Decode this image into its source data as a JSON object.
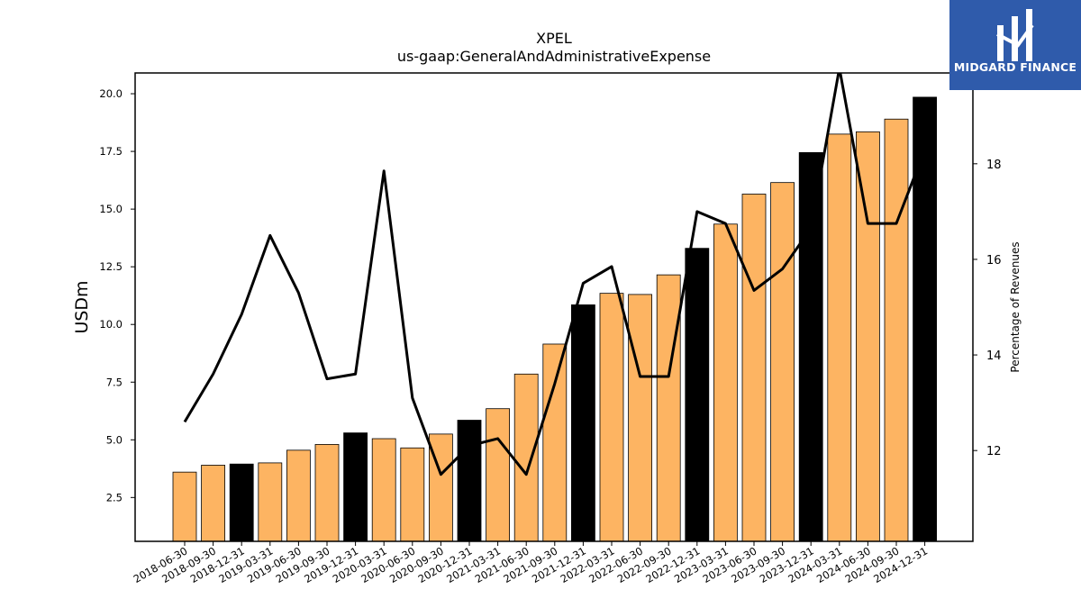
{
  "chart_data": {
    "type": "bar",
    "title": "XPEL",
    "subtitle": "us-gaap:GeneralAndAdministrativeExpense",
    "ylabel": "USDm",
    "y2label": "Percentage of Revenues",
    "ylim": [
      0.6,
      20.9
    ],
    "y2lim": [
      10.1,
      19.9
    ],
    "yticks": [
      "2.5",
      "5.0",
      "7.5",
      "10.0",
      "12.5",
      "15.0",
      "17.5",
      "20.0"
    ],
    "y2ticks": [
      "12",
      "14",
      "16",
      "18"
    ],
    "categories": [
      "2018-06-30",
      "2018-09-30",
      "2018-12-31",
      "2019-03-31",
      "2019-06-30",
      "2019-09-30",
      "2019-12-31",
      "2020-03-31",
      "2020-06-30",
      "2020-09-30",
      "2020-12-31",
      "2021-03-31",
      "2021-06-30",
      "2021-09-30",
      "2021-12-31",
      "2022-03-31",
      "2022-06-30",
      "2022-09-30",
      "2022-12-31",
      "2023-03-31",
      "2023-06-30",
      "2023-09-30",
      "2023-12-31",
      "2024-03-31",
      "2024-06-30",
      "2024-09-30",
      "2024-12-31"
    ],
    "series": [
      {
        "kind": "bar",
        "values": [
          3.6,
          3.9,
          3.95,
          4.0,
          4.55,
          4.8,
          5.3,
          5.05,
          4.65,
          5.25,
          5.85,
          6.35,
          7.85,
          9.15,
          10.85,
          11.35,
          11.3,
          12.15,
          13.3,
          14.35,
          15.65,
          16.15,
          17.45,
          18.25,
          18.35,
          18.9,
          19.85
        ],
        "colors": [
          "#fdb462",
          "#fdb462",
          "#000000",
          "#fdb462",
          "#fdb462",
          "#fdb462",
          "#000000",
          "#fdb462",
          "#fdb462",
          "#fdb462",
          "#000000",
          "#fdb462",
          "#fdb462",
          "#fdb462",
          "#000000",
          "#fdb462",
          "#fdb462",
          "#fdb462",
          "#000000",
          "#fdb462",
          "#fdb462",
          "#fdb462",
          "#000000",
          "#fdb462",
          "#fdb462",
          "#fdb462",
          "#000000"
        ]
      },
      {
        "kind": "line",
        "axis": "right",
        "color": "#000000",
        "values": [
          12.6,
          13.6,
          14.85,
          16.5,
          15.3,
          13.5,
          13.6,
          17.85,
          13.1,
          11.5,
          12.1,
          12.25,
          11.5,
          13.4,
          15.5,
          15.85,
          13.55,
          13.55,
          17.0,
          16.75,
          15.35,
          15.8,
          16.65,
          20.0,
          16.75,
          16.75,
          18.3
        ]
      }
    ]
  },
  "logo": {
    "text": "MIDGARD FINANCE"
  }
}
